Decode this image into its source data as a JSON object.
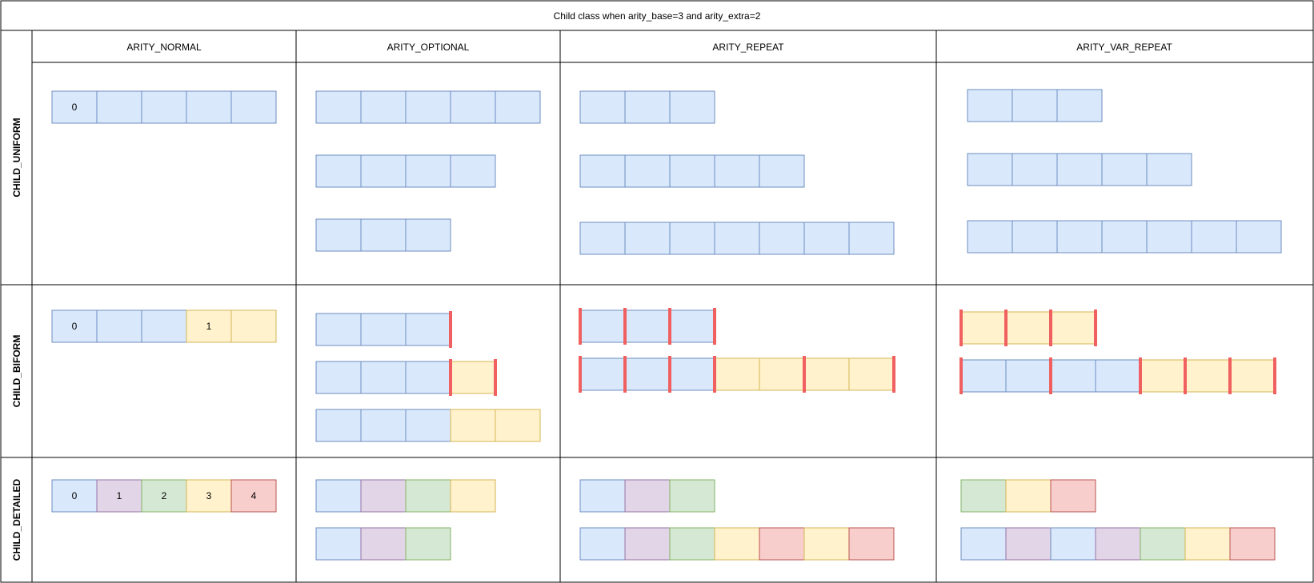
{
  "title": "Child class when arity_base=3 and arity_extra=2",
  "columns": [
    "ARITY_NORMAL",
    "ARITY_OPTIONAL",
    "ARITY_REPEAT",
    "ARITY_VAR_REPEAT"
  ],
  "rows": [
    "CHILD_UNIFORM",
    "CHILD_BIFORM",
    "CHILD_DETAILED"
  ],
  "colors": {
    "blue": "#dae8fc",
    "blue_stroke": "#6c8ebf",
    "yellow": "#fff2cc",
    "yellow_stroke": "#d6b656",
    "purple": "#e1d5e7",
    "purple_stroke": "#9673a6",
    "green": "#d5e8d4",
    "green_stroke": "#82b366",
    "red": "#f8cecc",
    "red_stroke": "#b85450",
    "marker": "#f06060",
    "border": "#000000"
  },
  "cells": [
    {
      "row": "CHILD_UNIFORM",
      "column": "ARITY_NORMAL",
      "strips": [
        {
          "boxes": [
            {
              "color": "blue",
              "label": "0"
            },
            {
              "color": "blue"
            },
            {
              "color": "blue"
            },
            {
              "color": "blue"
            },
            {
              "color": "blue"
            }
          ]
        }
      ]
    },
    {
      "row": "CHILD_UNIFORM",
      "column": "ARITY_OPTIONAL",
      "strips": [
        {
          "boxes": [
            {
              "color": "blue"
            },
            {
              "color": "blue"
            },
            {
              "color": "blue"
            },
            {
              "color": "blue"
            },
            {
              "color": "blue"
            }
          ]
        },
        {
          "boxes": [
            {
              "color": "blue"
            },
            {
              "color": "blue"
            },
            {
              "color": "blue"
            },
            {
              "color": "blue"
            }
          ]
        },
        {
          "boxes": [
            {
              "color": "blue"
            },
            {
              "color": "blue"
            },
            {
              "color": "blue"
            }
          ]
        }
      ]
    },
    {
      "row": "CHILD_UNIFORM",
      "column": "ARITY_REPEAT",
      "strips": [
        {
          "boxes": [
            {
              "color": "blue"
            },
            {
              "color": "blue"
            },
            {
              "color": "blue"
            }
          ]
        },
        {
          "boxes": [
            {
              "color": "blue"
            },
            {
              "color": "blue"
            },
            {
              "color": "blue"
            },
            {
              "color": "blue"
            },
            {
              "color": "blue"
            }
          ]
        },
        {
          "boxes": [
            {
              "color": "blue"
            },
            {
              "color": "blue"
            },
            {
              "color": "blue"
            },
            {
              "color": "blue"
            },
            {
              "color": "blue"
            },
            {
              "color": "blue"
            },
            {
              "color": "blue"
            }
          ]
        }
      ]
    },
    {
      "row": "CHILD_UNIFORM",
      "column": "ARITY_VAR_REPEAT",
      "strips": [
        {
          "boxes": [
            {
              "color": "blue"
            },
            {
              "color": "blue"
            },
            {
              "color": "blue"
            }
          ]
        },
        {
          "boxes": [
            {
              "color": "blue"
            },
            {
              "color": "blue"
            },
            {
              "color": "blue"
            },
            {
              "color": "blue"
            },
            {
              "color": "blue"
            }
          ]
        },
        {
          "boxes": [
            {
              "color": "blue"
            },
            {
              "color": "blue"
            },
            {
              "color": "blue"
            },
            {
              "color": "blue"
            },
            {
              "color": "blue"
            },
            {
              "color": "blue"
            },
            {
              "color": "blue"
            }
          ]
        }
      ]
    },
    {
      "row": "CHILD_BIFORM",
      "column": "ARITY_NORMAL",
      "strips": [
        {
          "boxes": [
            {
              "color": "blue",
              "label": "0"
            },
            {
              "color": "blue"
            },
            {
              "color": "blue"
            },
            {
              "color": "yellow",
              "label": "1"
            },
            {
              "color": "yellow"
            }
          ]
        }
      ]
    },
    {
      "row": "CHILD_BIFORM",
      "column": "ARITY_OPTIONAL",
      "strips": [
        {
          "boxes": [
            {
              "color": "blue"
            },
            {
              "color": "blue"
            },
            {
              "color": "blue"
            }
          ],
          "markers": [
            3
          ]
        },
        {
          "boxes": [
            {
              "color": "blue"
            },
            {
              "color": "blue"
            },
            {
              "color": "blue"
            },
            {
              "color": "yellow"
            }
          ],
          "markers": [
            3,
            4
          ]
        },
        {
          "boxes": [
            {
              "color": "blue"
            },
            {
              "color": "blue"
            },
            {
              "color": "blue"
            },
            {
              "color": "yellow"
            },
            {
              "color": "yellow"
            }
          ]
        }
      ]
    },
    {
      "row": "CHILD_BIFORM",
      "column": "ARITY_REPEAT",
      "strips": [
        {
          "boxes": [
            {
              "color": "blue"
            },
            {
              "color": "blue"
            },
            {
              "color": "blue"
            }
          ],
          "markers": [
            0,
            1,
            2,
            3
          ]
        },
        {
          "boxes": [
            {
              "color": "blue"
            },
            {
              "color": "blue"
            },
            {
              "color": "blue"
            },
            {
              "color": "yellow"
            },
            {
              "color": "yellow"
            },
            {
              "color": "yellow"
            },
            {
              "color": "yellow"
            }
          ],
          "markers": [
            0,
            1,
            2,
            3,
            5,
            7
          ]
        }
      ]
    },
    {
      "row": "CHILD_BIFORM",
      "column": "ARITY_VAR_REPEAT",
      "strips": [
        {
          "boxes": [
            {
              "color": "yellow"
            },
            {
              "color": "yellow"
            },
            {
              "color": "yellow"
            }
          ],
          "markers": [
            0,
            1,
            2,
            3
          ]
        },
        {
          "boxes": [
            {
              "color": "blue"
            },
            {
              "color": "blue"
            },
            {
              "color": "blue"
            },
            {
              "color": "blue"
            },
            {
              "color": "yellow"
            },
            {
              "color": "yellow"
            },
            {
              "color": "yellow"
            }
          ],
          "markers": [
            0,
            2,
            4,
            5,
            6,
            7
          ]
        }
      ]
    },
    {
      "row": "CHILD_DETAILED",
      "column": "ARITY_NORMAL",
      "strips": [
        {
          "boxes": [
            {
              "color": "blue",
              "label": "0"
            },
            {
              "color": "purple",
              "label": "1"
            },
            {
              "color": "green",
              "label": "2"
            },
            {
              "color": "yellow",
              "label": "3"
            },
            {
              "color": "red",
              "label": "4"
            }
          ]
        }
      ]
    },
    {
      "row": "CHILD_DETAILED",
      "column": "ARITY_OPTIONAL",
      "strips": [
        {
          "boxes": [
            {
              "color": "blue"
            },
            {
              "color": "purple"
            },
            {
              "color": "green"
            },
            {
              "color": "yellow"
            }
          ]
        },
        {
          "boxes": [
            {
              "color": "blue"
            },
            {
              "color": "purple"
            },
            {
              "color": "green"
            }
          ]
        }
      ]
    },
    {
      "row": "CHILD_DETAILED",
      "column": "ARITY_REPEAT",
      "strips": [
        {
          "boxes": [
            {
              "color": "blue"
            },
            {
              "color": "purple"
            },
            {
              "color": "green"
            }
          ]
        },
        {
          "boxes": [
            {
              "color": "blue"
            },
            {
              "color": "purple"
            },
            {
              "color": "green"
            },
            {
              "color": "yellow"
            },
            {
              "color": "red"
            },
            {
              "color": "yellow"
            },
            {
              "color": "red"
            }
          ]
        }
      ]
    },
    {
      "row": "CHILD_DETAILED",
      "column": "ARITY_VAR_REPEAT",
      "strips": [
        {
          "boxes": [
            {
              "color": "green"
            },
            {
              "color": "yellow"
            },
            {
              "color": "red"
            }
          ]
        },
        {
          "boxes": [
            {
              "color": "blue"
            },
            {
              "color": "purple"
            },
            {
              "color": "blue"
            },
            {
              "color": "purple"
            },
            {
              "color": "green"
            },
            {
              "color": "yellow"
            },
            {
              "color": "red"
            }
          ]
        }
      ]
    }
  ]
}
